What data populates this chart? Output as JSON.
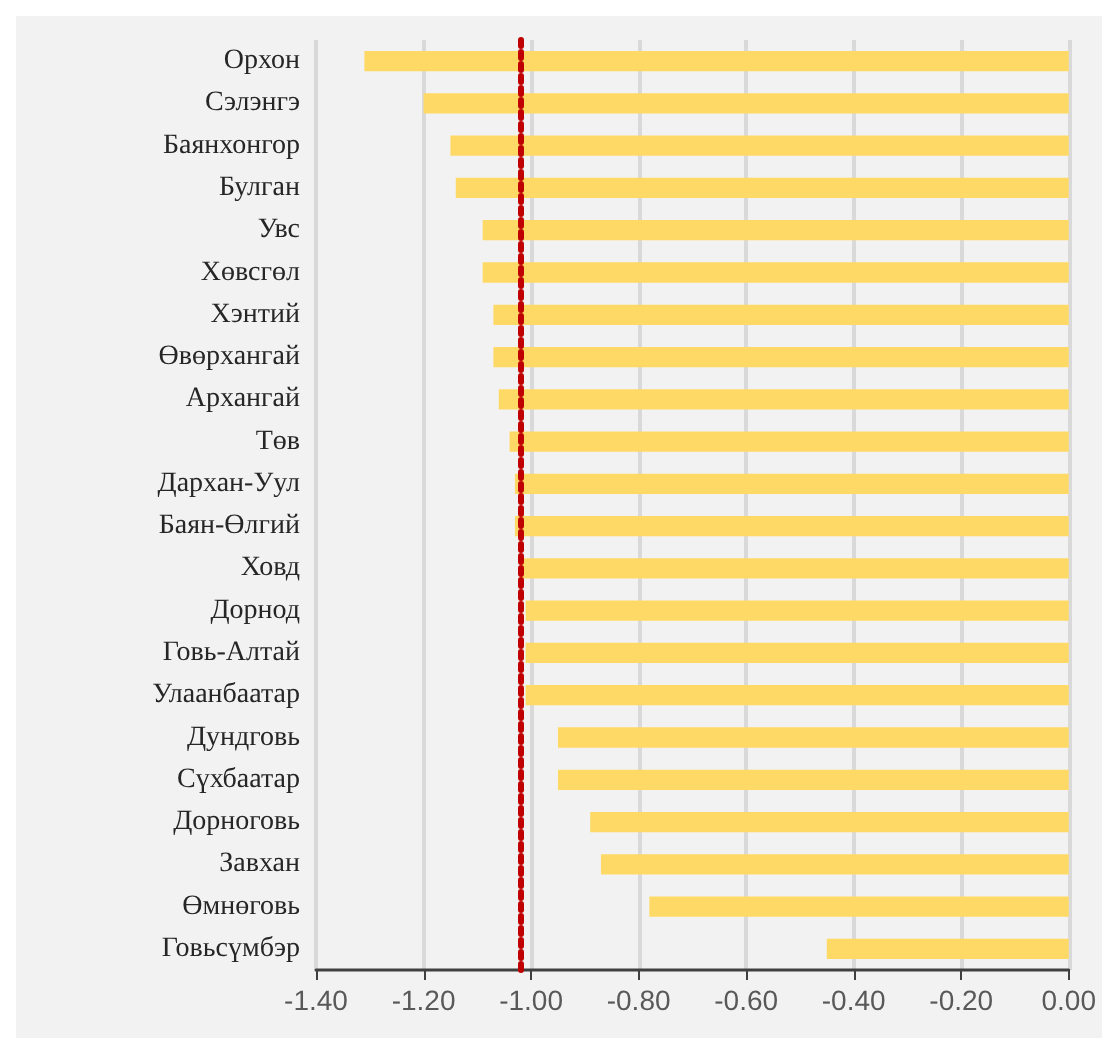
{
  "chart_data": {
    "type": "bar",
    "orientation": "horizontal",
    "categories": [
      "Орхон",
      "Сэлэнгэ",
      "Баянхонгор",
      "Булган",
      "Увс",
      "Хөвсгөл",
      "Хэнтий",
      "Өвөрхангай",
      "Архангай",
      "Төв",
      "Дархан-Уул",
      "Баян-Өлгий",
      "Ховд",
      "Дорнод",
      "Говь-Алтай",
      "Улаанбаатар",
      "Дундговь",
      "Сүхбаатар",
      "Дорноговь",
      "Завхан",
      "Өмнөговь",
      "Говьсүмбэр"
    ],
    "values": [
      -1.31,
      -1.2,
      -1.15,
      -1.14,
      -1.09,
      -1.09,
      -1.07,
      -1.07,
      -1.06,
      -1.04,
      -1.03,
      -1.03,
      -1.02,
      -1.01,
      -1.01,
      -1.01,
      -0.95,
      -0.95,
      -0.89,
      -0.87,
      -0.78,
      -0.45
    ],
    "color": "#ffd966",
    "xlim": [
      -1.4,
      0
    ],
    "xticks": [
      {
        "value": -1.4,
        "label": "-1.40"
      },
      {
        "value": -1.2,
        "label": "-1.20"
      },
      {
        "value": -1.0,
        "label": "-1.00"
      },
      {
        "value": -0.8,
        "label": "-0.80"
      },
      {
        "value": -0.6,
        "label": "-0.60"
      },
      {
        "value": -0.4,
        "label": "-0.40"
      },
      {
        "value": -0.2,
        "label": "-0.20"
      },
      {
        "value": 0,
        "label": "0.00"
      }
    ],
    "grid": "x",
    "ref_lines": [
      {
        "axis": "x",
        "value": -1.02,
        "color": "#c00000",
        "line_style": "dotted"
      }
    ]
  }
}
